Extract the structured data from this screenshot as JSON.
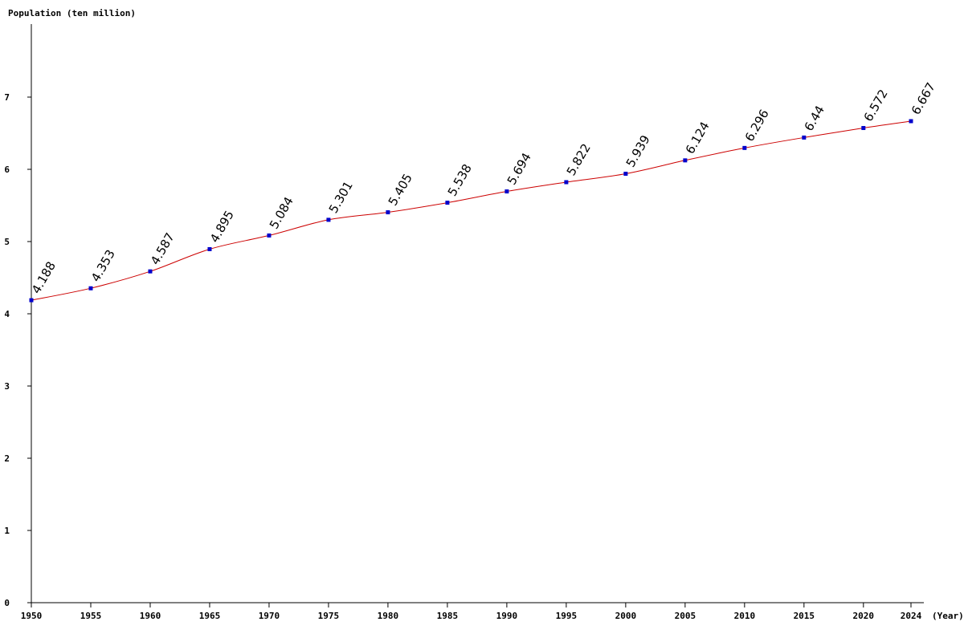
{
  "chart_data": {
    "type": "line",
    "ylabel": "Population (ten million)",
    "xlabel": "(Year)",
    "x": [
      1950,
      1955,
      1960,
      1965,
      1970,
      1975,
      1980,
      1985,
      1990,
      1995,
      2000,
      2005,
      2010,
      2015,
      2020,
      2024
    ],
    "series": [
      {
        "values": [
          4.188,
          4.353,
          4.587,
          4.895,
          5.084,
          5.301,
          5.405,
          5.538,
          5.694,
          5.822,
          5.939,
          6.124,
          6.296,
          6.44,
          6.572,
          6.667
        ],
        "labels": [
          "4.188",
          "4.353",
          "4.587",
          "4.895",
          "5.084",
          "5.301",
          "5.405",
          "5.538",
          "5.694",
          "5.822",
          "5.939",
          "6.124",
          "6.296",
          "6.44",
          "6.572",
          "6.667"
        ]
      }
    ],
    "xticks": [
      "1950",
      "1955",
      "1960",
      "1965",
      "1970",
      "1975",
      "1980",
      "1985",
      "1990",
      "1995",
      "2000",
      "2005",
      "2010",
      "2015",
      "2020",
      "2024"
    ],
    "yticks": [
      "0",
      "1",
      "2",
      "3",
      "4",
      "5",
      "6",
      "7"
    ],
    "ylim": [
      0,
      8
    ],
    "grid": false,
    "colors": {
      "line": "#cc0000",
      "marker": "#0000cc",
      "axis": "#000000"
    }
  }
}
